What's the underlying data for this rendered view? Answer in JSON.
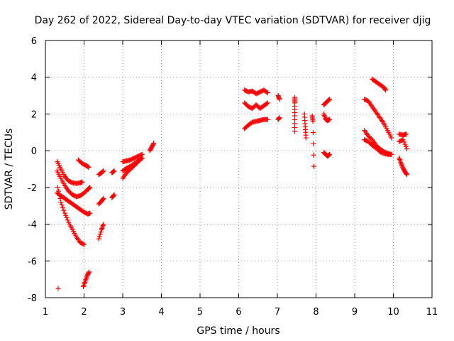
{
  "chart_data": {
    "type": "scatter",
    "title": "Day 262 of 2022, Sidereal Day-to-day VTEC variation (SDTVAR) for receiver djig",
    "xlabel": "GPS time / hours",
    "ylabel": "SDTVAR / TECUs",
    "xlim": [
      1,
      11
    ],
    "ylim": [
      -8,
      6
    ],
    "xticks": [
      1,
      2,
      3,
      4,
      5,
      6,
      7,
      8,
      9,
      10,
      11
    ],
    "yticks": [
      -8,
      -6,
      -4,
      -2,
      0,
      2,
      4,
      6
    ],
    "xtick_labels": [
      "1",
      "2",
      "3",
      "4",
      "5",
      "6",
      "7",
      "8",
      "9",
      "10",
      "11"
    ],
    "ytick_labels": [
      "-8",
      "-6",
      "-4",
      "-2",
      "0",
      "2",
      "4",
      "6"
    ],
    "grid": true,
    "marker": "+",
    "marker_color": "#ff0000",
    "series": [
      {
        "name": "SDTVAR",
        "segments": [
          {
            "x": [
              1.31,
              1.4,
              1.5,
              1.6,
              1.7,
              1.8,
              1.9,
              1.95
            ],
            "y": [
              -0.6,
              -1.0,
              -1.4,
              -1.65,
              -1.75,
              -1.78,
              -1.75,
              -1.7
            ]
          },
          {
            "x": [
              1.3,
              1.4,
              1.5,
              1.6,
              1.7,
              1.8,
              1.9,
              2.0,
              2.1,
              2.15
            ],
            "y": [
              -1.1,
              -1.5,
              -1.9,
              -2.2,
              -2.4,
              -2.5,
              -2.45,
              -2.3,
              -2.1,
              -2.0
            ]
          },
          {
            "x": [
              1.3,
              1.4,
              1.5,
              1.6,
              1.7,
              1.8,
              1.9,
              2.0,
              2.1,
              2.15
            ],
            "y": [
              -2.3,
              -2.45,
              -2.6,
              -2.75,
              -2.9,
              -3.05,
              -3.2,
              -3.35,
              -3.45,
              -3.4
            ]
          },
          {
            "x": [
              1.32,
              1.4,
              1.5,
              1.6,
              1.7,
              1.8,
              1.9,
              2.0
            ],
            "y": [
              -2.0,
              -2.8,
              -3.4,
              -3.9,
              -4.3,
              -4.7,
              -5.0,
              -5.1
            ]
          },
          {
            "x": [
              1.33
            ],
            "y": [
              -7.5
            ]
          },
          {
            "x": [
              1.85,
              1.95,
              2.05,
              2.12
            ],
            "y": [
              -0.5,
              -0.7,
              -0.8,
              -0.9
            ]
          },
          {
            "x": [
              1.98,
              2.03,
              2.08,
              2.13
            ],
            "y": [
              -7.4,
              -7.1,
              -6.8,
              -6.6
            ]
          },
          {
            "x": [
              2.38,
              2.45,
              2.5
            ],
            "y": [
              -1.3,
              -1.2,
              -1.1
            ]
          },
          {
            "x": [
              2.38,
              2.45,
              2.5
            ],
            "y": [
              -2.9,
              -2.75,
              -2.6
            ]
          },
          {
            "x": [
              2.38,
              2.45,
              2.5
            ],
            "y": [
              -4.8,
              -4.3,
              -4.0
            ]
          },
          {
            "x": [
              2.72,
              2.78
            ],
            "y": [
              -1.2,
              -1.1
            ]
          },
          {
            "x": [
              2.72,
              2.78
            ],
            "y": [
              -2.55,
              -2.4
            ]
          },
          {
            "x": [
              3.0,
              3.1,
              3.2,
              3.3,
              3.4,
              3.5
            ],
            "y": [
              -1.5,
              -1.2,
              -1.0,
              -0.8,
              -0.6,
              -0.4
            ]
          },
          {
            "x": [
              3.0,
              3.1,
              3.2,
              3.3,
              3.4,
              3.5
            ],
            "y": [
              -0.6,
              -0.55,
              -0.5,
              -0.4,
              -0.3,
              -0.2
            ]
          },
          {
            "x": [
              3.0,
              3.1,
              3.2,
              3.3,
              3.4,
              3.5
            ],
            "y": [
              -1.1,
              -0.95,
              -0.85,
              -0.7,
              -0.55,
              -0.4
            ]
          },
          {
            "x": [
              3.7,
              3.75,
              3.8
            ],
            "y": [
              0.0,
              0.2,
              0.4
            ]
          },
          {
            "x": [
              6.15,
              6.25,
              6.35,
              6.45,
              6.55,
              6.65,
              6.75
            ],
            "y": [
              3.3,
              3.2,
              3.25,
              3.1,
              3.2,
              3.3,
              3.15
            ]
          },
          {
            "x": [
              6.15,
              6.25,
              6.35,
              6.45,
              6.55,
              6.65,
              6.75
            ],
            "y": [
              2.6,
              2.4,
              2.3,
              2.5,
              2.3,
              2.45,
              2.6
            ]
          },
          {
            "x": [
              6.15,
              6.25,
              6.35,
              6.45,
              6.55,
              6.65,
              6.75
            ],
            "y": [
              1.2,
              1.4,
              1.55,
              1.6,
              1.65,
              1.7,
              1.7
            ]
          },
          {
            "x": [
              7.02,
              7.05
            ],
            "y": [
              3.0,
              2.8
            ]
          },
          {
            "x": [
              7.02,
              7.05
            ],
            "y": [
              1.7,
              1.8
            ]
          },
          {
            "x": [
              7.45,
              7.45,
              7.45,
              7.45
            ],
            "y": [
              2.9,
              2.6,
              1.9,
              1.05
            ]
          },
          {
            "x": [
              7.7,
              7.72,
              7.74
            ],
            "y": [
              2.0,
              1.3,
              0.7
            ]
          },
          {
            "x": [
              7.9,
              7.92,
              7.94
            ],
            "y": [
              1.9,
              1.6,
              -0.85
            ]
          },
          {
            "x": [
              8.2,
              8.25,
              8.3,
              8.35
            ],
            "y": [
              2.5,
              2.6,
              2.7,
              2.8
            ]
          },
          {
            "x": [
              8.2,
              8.25,
              8.3,
              8.35
            ],
            "y": [
              2.0,
              1.7,
              1.65,
              1.7
            ]
          },
          {
            "x": [
              8.2,
              8.25,
              8.3,
              8.35
            ],
            "y": [
              -0.1,
              -0.2,
              -0.3,
              -0.2
            ]
          },
          {
            "x": [
              9.25,
              9.35,
              9.45,
              9.55,
              9.65,
              9.75,
              9.85,
              9.95
            ],
            "y": [
              2.8,
              2.7,
              2.4,
              2.1,
              1.8,
              1.5,
              1.1,
              0.7
            ]
          },
          {
            "x": [
              9.25,
              9.35,
              9.45,
              9.55,
              9.65,
              9.75,
              9.85,
              9.95
            ],
            "y": [
              1.1,
              0.8,
              0.6,
              0.3,
              0.1,
              -0.05,
              -0.15,
              -0.2
            ]
          },
          {
            "x": [
              9.25,
              9.35,
              9.45,
              9.55,
              9.65,
              9.75,
              9.85,
              9.95
            ],
            "y": [
              0.6,
              0.5,
              0.3,
              0.15,
              -0.05,
              -0.15,
              -0.2,
              -0.2
            ]
          },
          {
            "x": [
              9.45,
              9.55,
              9.65,
              9.75,
              9.8
            ],
            "y": [
              3.9,
              3.75,
              3.6,
              3.45,
              3.3
            ]
          },
          {
            "x": [
              10.15,
              10.2,
              10.25,
              10.3,
              10.35
            ],
            "y": [
              -0.4,
              -0.7,
              -0.95,
              -1.15,
              -1.3
            ]
          },
          {
            "x": [
              10.15,
              10.25,
              10.33
            ],
            "y": [
              0.9,
              0.85,
              0.9
            ]
          },
          {
            "x": [
              10.15,
              10.25,
              10.35
            ],
            "y": [
              0.5,
              0.6,
              0.1
            ]
          }
        ]
      }
    ]
  }
}
